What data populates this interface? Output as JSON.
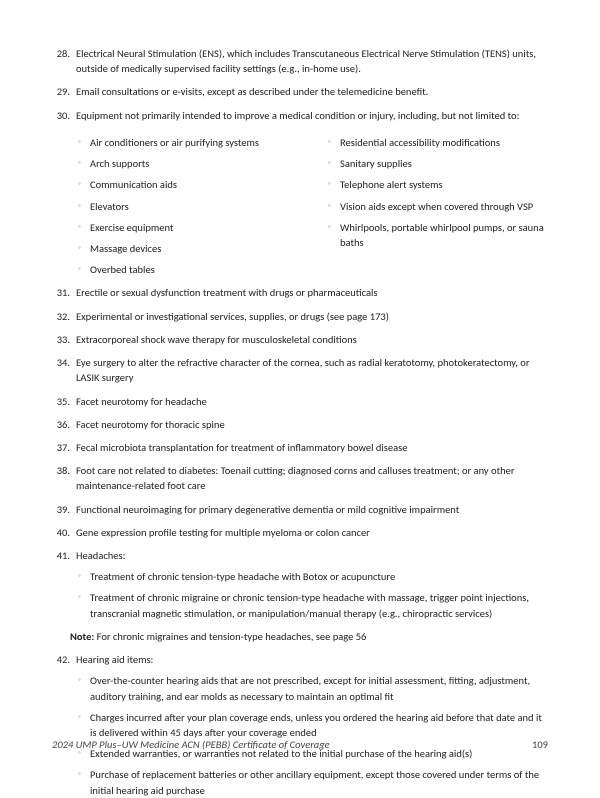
{
  "items": [
    {
      "n": "28.",
      "text": "Electrical Neural Stimulation (ENS), which includes Transcutaneous Electrical Nerve Stimulation (TENS) units, outside of medically supervised facility settings (e.g., in-home use)."
    },
    {
      "n": "29.",
      "text": "Email consultations or e-visits, except as described under the telemedicine benefit."
    },
    {
      "n": "30.",
      "text": "Equipment not primarily intended to improve a medical condition or injury, including, but not limited to:",
      "equipLeft": [
        "Air conditioners or air purifying systems",
        "Arch supports",
        "Communication aids",
        "Elevators",
        "Exercise equipment",
        "Massage devices",
        "Overbed tables"
      ],
      "equipRight": [
        "Residential accessibility modifications",
        "Sanitary supplies",
        "Telephone alert systems",
        "Vision aids except when covered through VSP",
        "Whirlpools, portable whirlpool pumps, or sauna baths"
      ]
    },
    {
      "n": "31.",
      "text": "Erectile or sexual dysfunction treatment with drugs or pharmaceuticals"
    },
    {
      "n": "32.",
      "text": "Experimental or investigational services, supplies, or drugs (see page 173)"
    },
    {
      "n": "33.",
      "text": "Extracorporeal shock wave therapy for musculoskeletal conditions"
    },
    {
      "n": "34.",
      "text": "Eye surgery to alter the refractive character of the cornea, such as radial keratotomy, photokeratectomy, or LASIK surgery"
    },
    {
      "n": "35.",
      "text": "Facet neurotomy for headache"
    },
    {
      "n": "36.",
      "text": "Facet neurotomy for thoracic spine"
    },
    {
      "n": "37.",
      "text": "Fecal microbiota transplantation for treatment of inflammatory bowel disease"
    },
    {
      "n": "38.",
      "text": "Foot care not related to diabetes: Toenail cutting; diagnosed corns and calluses treatment; or any other maintenance-related foot care"
    },
    {
      "n": "39.",
      "text": "Functional neuroimaging for primary degenerative dementia or mild cognitive impairment"
    },
    {
      "n": "40.",
      "text": "Gene expression profile testing for multiple myeloma or colon cancer"
    },
    {
      "n": "41.",
      "text": "Headaches:",
      "subs": [
        "Treatment of chronic tension-type headache with Botox or acupuncture",
        "Treatment of chronic migraine or chronic tension-type headache with massage, trigger point injections, transcranial magnetic stimulation, or manipulation/manual therapy (e.g., chiropractic services)"
      ],
      "noteLabel": "Note:",
      "noteText": " For chronic migraines and tension-type headaches, see page 56"
    },
    {
      "n": "42.",
      "text": "Hearing aid items:",
      "subs": [
        "Over-the-counter hearing aids that are not prescribed, except for initial assessment, fitting, adjustment, auditory training, and ear molds as necessary to maintain an optimal fit",
        "Charges incurred after your plan coverage ends, unless you ordered the hearing aid before that date and it is delivered within 45 days after your coverage ended",
        "Extended warranties, or warranties not related to the initial purchase of the hearing aid(s)",
        "Purchase of replacement batteries or other ancillary equipment, except those covered under terms of the initial hearing aid purchase"
      ]
    }
  ],
  "footer": {
    "title": "2024 UMP Plus–UW Medicine ACN (PEBB) Certificate of Coverage",
    "page": "109"
  },
  "colors": {
    "bullet": "#8ca0b3",
    "text": "#222222"
  }
}
